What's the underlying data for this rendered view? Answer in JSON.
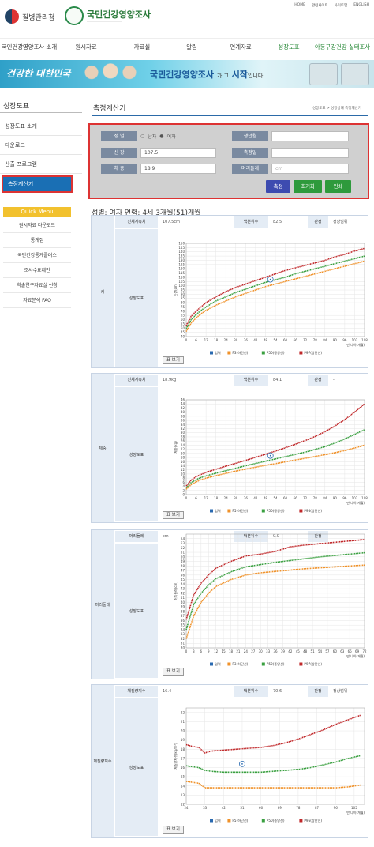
{
  "top_links": [
    "HOME",
    "관련사이트",
    "사이트맵",
    "ENGLISH"
  ],
  "logo": {
    "agency": "질병관리청",
    "site": "국민건강영양조사"
  },
  "nav": [
    {
      "label": "국민건강영양조사 소개",
      "x": 0,
      "w": 74
    },
    {
      "label": "원시자료",
      "x": 84,
      "w": 50
    },
    {
      "label": "자료실",
      "x": 160,
      "w": 40
    },
    {
      "label": "알림",
      "x": 228,
      "w": 30
    },
    {
      "label": "연계자료",
      "x": 282,
      "w": 46
    },
    {
      "label": "성장도표",
      "x": 346,
      "w": 40,
      "active": true
    },
    {
      "label": "아동구강건강 실태조사",
      "x": 396,
      "w": 76,
      "active": true
    }
  ],
  "banner": {
    "left": "건강한 대한민국",
    "main": "국민건강영양조사",
    "mid": "가 그",
    "end": "시작",
    "tail": "입니다."
  },
  "sidebar": {
    "title": "성장도표",
    "items": [
      "성장도표 소개",
      "다운로드",
      "산출 프로그램"
    ],
    "active": "측정계산기",
    "quick_title": "Quick Menu",
    "quick_items": [
      "원시자료 다운로드",
      "통계집",
      "국민건강통계플러스",
      "조사수요제안",
      "학술연구자료실 신청",
      "자료분석 FAQ"
    ]
  },
  "page_title": "측정계산기",
  "breadcrumb": "성장도표 > 성장상태 측정계산기",
  "form": {
    "sex_label": "성 별",
    "male": "남자",
    "female": "여자",
    "height_label": "신 장",
    "height_value": "107.5",
    "weight_label": "체 중",
    "weight_value": "18.9",
    "birth_label": "생년월",
    "date_label": "측정일",
    "head_label": "머리둘레",
    "head_placeholder": "cm",
    "btn_measure": "측정",
    "btn_reset": "초기화",
    "btn_print": "인쇄"
  },
  "result_info": "성별: 여자   연령: 4세 3개월(51)개월",
  "legend_age": "만 나이(개월)",
  "table_button": "표 보기",
  "cards": [
    {
      "row": "키",
      "measure_label": "신체계측치",
      "measure_value": "107.5cm",
      "pct_label": "백분위수",
      "pct_value": "82.5",
      "judge_label": "판정",
      "judge_value": "정상범위",
      "chart_label": "성장도표",
      "chart_data": {
        "type": "line",
        "ylabel": "신장(cm)",
        "xlabel": "만 나이(개월)",
        "x": [
          0,
          3,
          6,
          9,
          12,
          18,
          24,
          30,
          36,
          42,
          48,
          54,
          60,
          66,
          72,
          78,
          84,
          90,
          96,
          102,
          108
        ],
        "xticks": [
          0,
          6,
          12,
          18,
          24,
          30,
          36,
          42,
          48,
          54,
          60,
          66,
          72,
          78,
          84,
          90,
          96,
          102,
          108
        ],
        "yticks": [
          40,
          45,
          50,
          55,
          60,
          65,
          70,
          75,
          80,
          85,
          90,
          95,
          100,
          105,
          110,
          115,
          120,
          125,
          130,
          135,
          140,
          145,
          150
        ],
        "ylim": [
          40,
          150
        ],
        "xlim": [
          0,
          108
        ],
        "series": [
          {
            "name": "P3(하단선)",
            "color": "#f0922a",
            "values": [
              46,
              56,
              62,
              67,
              71,
              77,
              82,
              87,
              91,
              95,
              99,
              102,
              105,
              108,
              111,
              114,
              117,
              120,
              123,
              126,
              129
            ]
          },
          {
            "name": "P50(중앙선)",
            "color": "#3aa040",
            "values": [
              49.5,
              60,
              66,
              71,
              75,
              82,
              87,
              92,
              96,
              100,
              104,
              107,
              110,
              114,
              117,
              120,
              123,
              126,
              129,
              132,
              135
            ]
          },
          {
            "name": "P97(상단선)",
            "color": "#c0282a",
            "values": [
              53,
              64,
              70,
              75,
              80,
              87,
              93,
              98,
              102,
              106,
              110,
              114,
              118,
              121,
              124,
              127,
              130,
              134,
              137,
              141,
              144
            ]
          }
        ],
        "point": {
          "x": 51,
          "y": 107.5
        },
        "legend": [
          "입력",
          "P3(하단선)",
          "P50(중앙선)",
          "P97(상단선)"
        ],
        "legend_colors": [
          "#2a6ab0",
          "#f0922a",
          "#3aa040",
          "#c0282a"
        ]
      }
    },
    {
      "row": "체중",
      "measure_label": "신체계측치",
      "measure_value": "18.9kg",
      "pct_label": "백분위수",
      "pct_value": "84.1",
      "judge_label": "판정",
      "judge_value": "-",
      "chart_label": "성장도표",
      "chart_data": {
        "type": "line",
        "ylabel": "체중(kg)",
        "xlabel": "만 나이(개월)",
        "x": [
          0,
          3,
          6,
          9,
          12,
          18,
          24,
          30,
          36,
          42,
          48,
          54,
          60,
          66,
          72,
          78,
          84,
          90,
          96,
          102,
          108
        ],
        "xticks": [
          0,
          6,
          12,
          18,
          24,
          30,
          36,
          42,
          48,
          54,
          60,
          66,
          72,
          78,
          84,
          90,
          96,
          102,
          108
        ],
        "yticks": [
          0,
          2,
          4,
          6,
          8,
          10,
          12,
          14,
          16,
          18,
          20,
          22,
          24,
          26,
          28,
          30,
          32,
          34,
          36,
          38,
          40,
          42,
          44,
          46
        ],
        "ylim": [
          0,
          46
        ],
        "xlim": [
          0,
          108
        ],
        "series": [
          {
            "name": "P5(하단선)",
            "color": "#f0922a",
            "values": [
              2.6,
              4.8,
              6.2,
              7.2,
              8.0,
              9.2,
              10.3,
              11.4,
              12.4,
              13.3,
              14.2,
              15.0,
              15.9,
              16.8,
              17.6,
              18.5,
              19.4,
              20.3,
              21.4,
              22.6,
              24
            ]
          },
          {
            "name": "P50(중앙선)",
            "color": "#3aa040",
            "values": [
              3.3,
              5.8,
              7.3,
              8.3,
              9.1,
              10.4,
              11.6,
              12.8,
              14.0,
              15.1,
              16.2,
              17.3,
              18.4,
              19.5,
              20.6,
              21.9,
              23.3,
              25.0,
              27.0,
              29.2,
              31.5
            ]
          },
          {
            "name": "P95(상단선)",
            "color": "#c0282a",
            "values": [
              4.2,
              7.0,
              8.7,
              9.8,
              10.8,
              12.3,
              13.8,
              15.2,
              16.6,
              18.1,
              19.6,
              21.1,
              22.7,
              24.4,
              26.2,
              28.2,
              30.5,
              33.2,
              36.4,
              40,
              44
            ]
          }
        ],
        "point": {
          "x": 51,
          "y": 18.9
        },
        "legend": [
          "입력",
          "P5(하단선)",
          "P50(중앙선)",
          "P95(상단선)"
        ],
        "legend_colors": [
          "#2a6ab0",
          "#f0922a",
          "#3aa040",
          "#c0282a"
        ]
      }
    },
    {
      "row": "머리둘레",
      "measure_label": "머리둘레",
      "measure_value": "cm",
      "pct_label": "백분위수",
      "pct_value": "0.0",
      "judge_label": "판정",
      "judge_value": "-",
      "chart_label": "성장도표",
      "chart_data": {
        "type": "line",
        "ylabel": "머리둘레(cm)",
        "xlabel": "만 나이(개월)",
        "x": [
          0,
          3,
          6,
          9,
          12,
          18,
          24,
          30,
          36,
          42,
          48,
          54,
          60,
          66,
          72
        ],
        "xticks": [
          0,
          3,
          6,
          9,
          12,
          15,
          18,
          21,
          24,
          27,
          30,
          33,
          36,
          39,
          42,
          45,
          48,
          51,
          54,
          57,
          60,
          63,
          66,
          69,
          72
        ],
        "yticks": [
          30,
          31,
          32,
          33,
          34,
          35,
          36,
          37,
          38,
          39,
          40,
          41,
          42,
          43,
          44,
          45,
          46,
          47,
          48,
          49,
          50,
          51,
          52,
          53,
          54
        ],
        "ylim": [
          30,
          55
        ],
        "xlim": [
          0,
          72
        ],
        "series": [
          {
            "name": "P3(하단선)",
            "color": "#f0922a",
            "values": [
              32,
              37,
              40,
              42,
              43.5,
              45,
              46,
              46.5,
              46.8,
              47.1,
              47.4,
              47.6,
              47.8,
              48,
              48.2
            ]
          },
          {
            "name": "P50(중앙선)",
            "color": "#3aa040",
            "values": [
              34,
              39.5,
              42,
              43.8,
              45.2,
              46.7,
              47.8,
              48.3,
              48.8,
              49.2,
              49.6,
              50,
              50.3,
              50.6,
              50.9
            ]
          },
          {
            "name": "P97(상단선)",
            "color": "#c0282a",
            "values": [
              36.2,
              41.6,
              44.2,
              46,
              47.5,
              49,
              50.2,
              50.6,
              51.2,
              52.2,
              52.6,
              52.9,
              53.2,
              53.5,
              53.8
            ]
          }
        ],
        "legend": [
          "입력",
          "P3(하단선)",
          "P50(중앙선)",
          "P97(상단선)"
        ],
        "legend_colors": [
          "#2a6ab0",
          "#f0922a",
          "#3aa040",
          "#c0282a"
        ]
      }
    },
    {
      "row": "체질량지수",
      "measure_label": "체질량지수",
      "measure_value": "16.4",
      "pct_label": "백분위수",
      "pct_value": "70.6",
      "judge_label": "판정",
      "judge_value": "정상범위",
      "chart_label": "성장도표",
      "chart_data": {
        "type": "line",
        "ylabel": "체질량지수(kg/m²)",
        "xlabel": "만 나이(개월)",
        "x": [
          24,
          27,
          30,
          33,
          36,
          42,
          48,
          54,
          60,
          66,
          72,
          78,
          84,
          90,
          96,
          102,
          108
        ],
        "xticks": [
          24,
          33,
          42,
          51,
          60,
          69,
          78,
          87,
          96,
          105
        ],
        "yticks": [
          12,
          13,
          14,
          15,
          16,
          17,
          18,
          19,
          20,
          21,
          22
        ],
        "ylim": [
          12,
          22.5
        ],
        "xlim": [
          24,
          110
        ],
        "series": [
          {
            "name": "P5(하단선)",
            "color": "#f0922a",
            "values": [
              14.5,
              14.4,
              14.3,
              13.8,
              13.8,
              13.8,
              13.8,
              13.8,
              13.8,
              13.8,
              13.8,
              13.8,
              13.8,
              13.8,
              13.8,
              13.9,
              14.1
            ]
          },
          {
            "name": "P50(중앙선)",
            "color": "#3aa040",
            "values": [
              16.2,
              16.1,
              16.0,
              15.7,
              15.6,
              15.5,
              15.5,
              15.5,
              15.5,
              15.6,
              15.7,
              15.8,
              16.0,
              16.3,
              16.6,
              17.0,
              17.3
            ]
          },
          {
            "name": "P95(상단선)",
            "color": "#c0282a",
            "values": [
              18.5,
              18.3,
              18.2,
              17.6,
              17.8,
              17.9,
              18.0,
              18.1,
              18.2,
              18.4,
              18.7,
              19.1,
              19.6,
              20.1,
              20.7,
              21.2,
              21.7
            ]
          }
        ],
        "point": {
          "x": 51,
          "y": 16.4
        },
        "legend": [
          "입력",
          "P5(하단선)",
          "P50(중앙선)",
          "P95(상단선)"
        ],
        "legend_colors": [
          "#2a6ab0",
          "#f0922a",
          "#3aa040",
          "#c0282a"
        ]
      }
    }
  ]
}
